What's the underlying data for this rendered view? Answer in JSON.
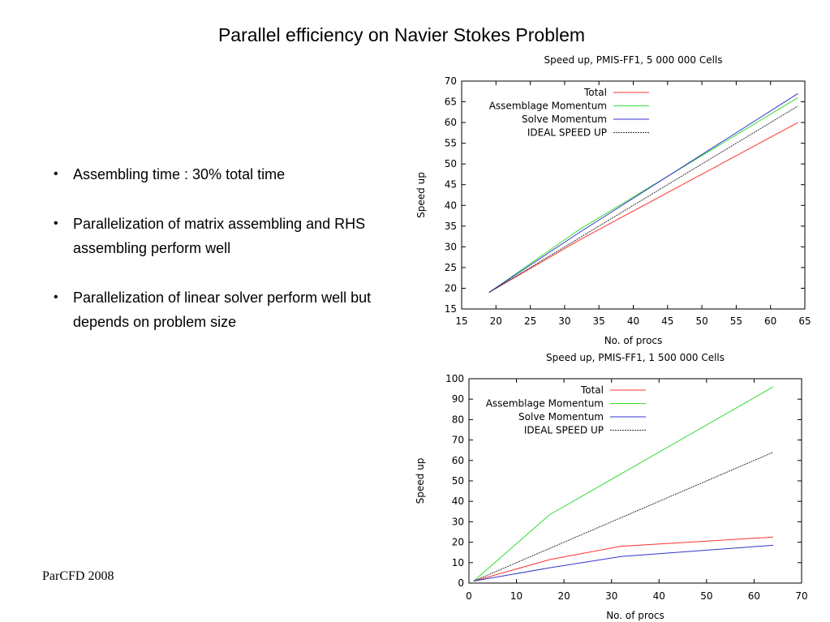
{
  "slide": {
    "title": "Parallel efficiency on Navier Stokes Problem",
    "bullets": [
      "Assembling time : 30% total time",
      "Parallelization of matrix assembling and RHS assembling perform well",
      "Parallelization of linear solver perform well but depends on problem size"
    ],
    "footer": "ParCFD 2008"
  },
  "chart_data": [
    {
      "type": "line",
      "title": "Speed up, PMIS-FF1, 5 000 000 Cells",
      "xlabel": "No. of procs",
      "ylabel": "Speed up",
      "xlim": [
        15,
        65
      ],
      "ylim": [
        15,
        70
      ],
      "xticks": [
        15,
        20,
        25,
        30,
        35,
        40,
        45,
        50,
        55,
        60,
        65
      ],
      "yticks": [
        15,
        20,
        25,
        30,
        35,
        40,
        45,
        50,
        55,
        60,
        65,
        70
      ],
      "grid": false,
      "legend_position": "top-right",
      "series": [
        {
          "name": "Total",
          "color": "#ff3030",
          "dashed": false,
          "x": [
            19,
            32,
            64
          ],
          "y": [
            19,
            31.5,
            60
          ]
        },
        {
          "name": "Assemblage Momentum",
          "color": "#33dd33",
          "dashed": false,
          "x": [
            19,
            32,
            64
          ],
          "y": [
            19,
            34,
            66
          ]
        },
        {
          "name": "Solve Momentum",
          "color": "#3333cc",
          "dashed": false,
          "x": [
            19,
            32,
            64
          ],
          "y": [
            19,
            33.3,
            67
          ]
        },
        {
          "name": "IDEAL SPEED UP",
          "color": "#333333",
          "dashed": true,
          "x": [
            19,
            64
          ],
          "y": [
            19,
            64
          ]
        }
      ]
    },
    {
      "type": "line",
      "title": "Speed up, PMIS-FF1, 1 500 000 Cells",
      "xlabel": "No. of procs",
      "ylabel": "Speed up",
      "xlim": [
        0,
        70
      ],
      "ylim": [
        0,
        100
      ],
      "xticks": [
        0,
        10,
        20,
        30,
        40,
        50,
        60,
        70
      ],
      "yticks": [
        0,
        10,
        20,
        30,
        40,
        50,
        60,
        70,
        80,
        90,
        100
      ],
      "grid": false,
      "legend_position": "top-right",
      "series": [
        {
          "name": "Total",
          "color": "#ff3030",
          "dashed": false,
          "x": [
            1,
            17,
            32,
            64
          ],
          "y": [
            1,
            11.5,
            18,
            22.5
          ]
        },
        {
          "name": "Assemblage Momentum",
          "color": "#33dd33",
          "dashed": false,
          "x": [
            1,
            17,
            64
          ],
          "y": [
            1,
            33.5,
            96
          ]
        },
        {
          "name": "Solve Momentum",
          "color": "#3333cc",
          "dashed": false,
          "x": [
            1,
            17,
            32,
            64
          ],
          "y": [
            1,
            7.5,
            13,
            18.5
          ]
        },
        {
          "name": "IDEAL SPEED UP",
          "color": "#333333",
          "dashed": true,
          "x": [
            1,
            64
          ],
          "y": [
            1,
            64
          ]
        }
      ]
    }
  ]
}
